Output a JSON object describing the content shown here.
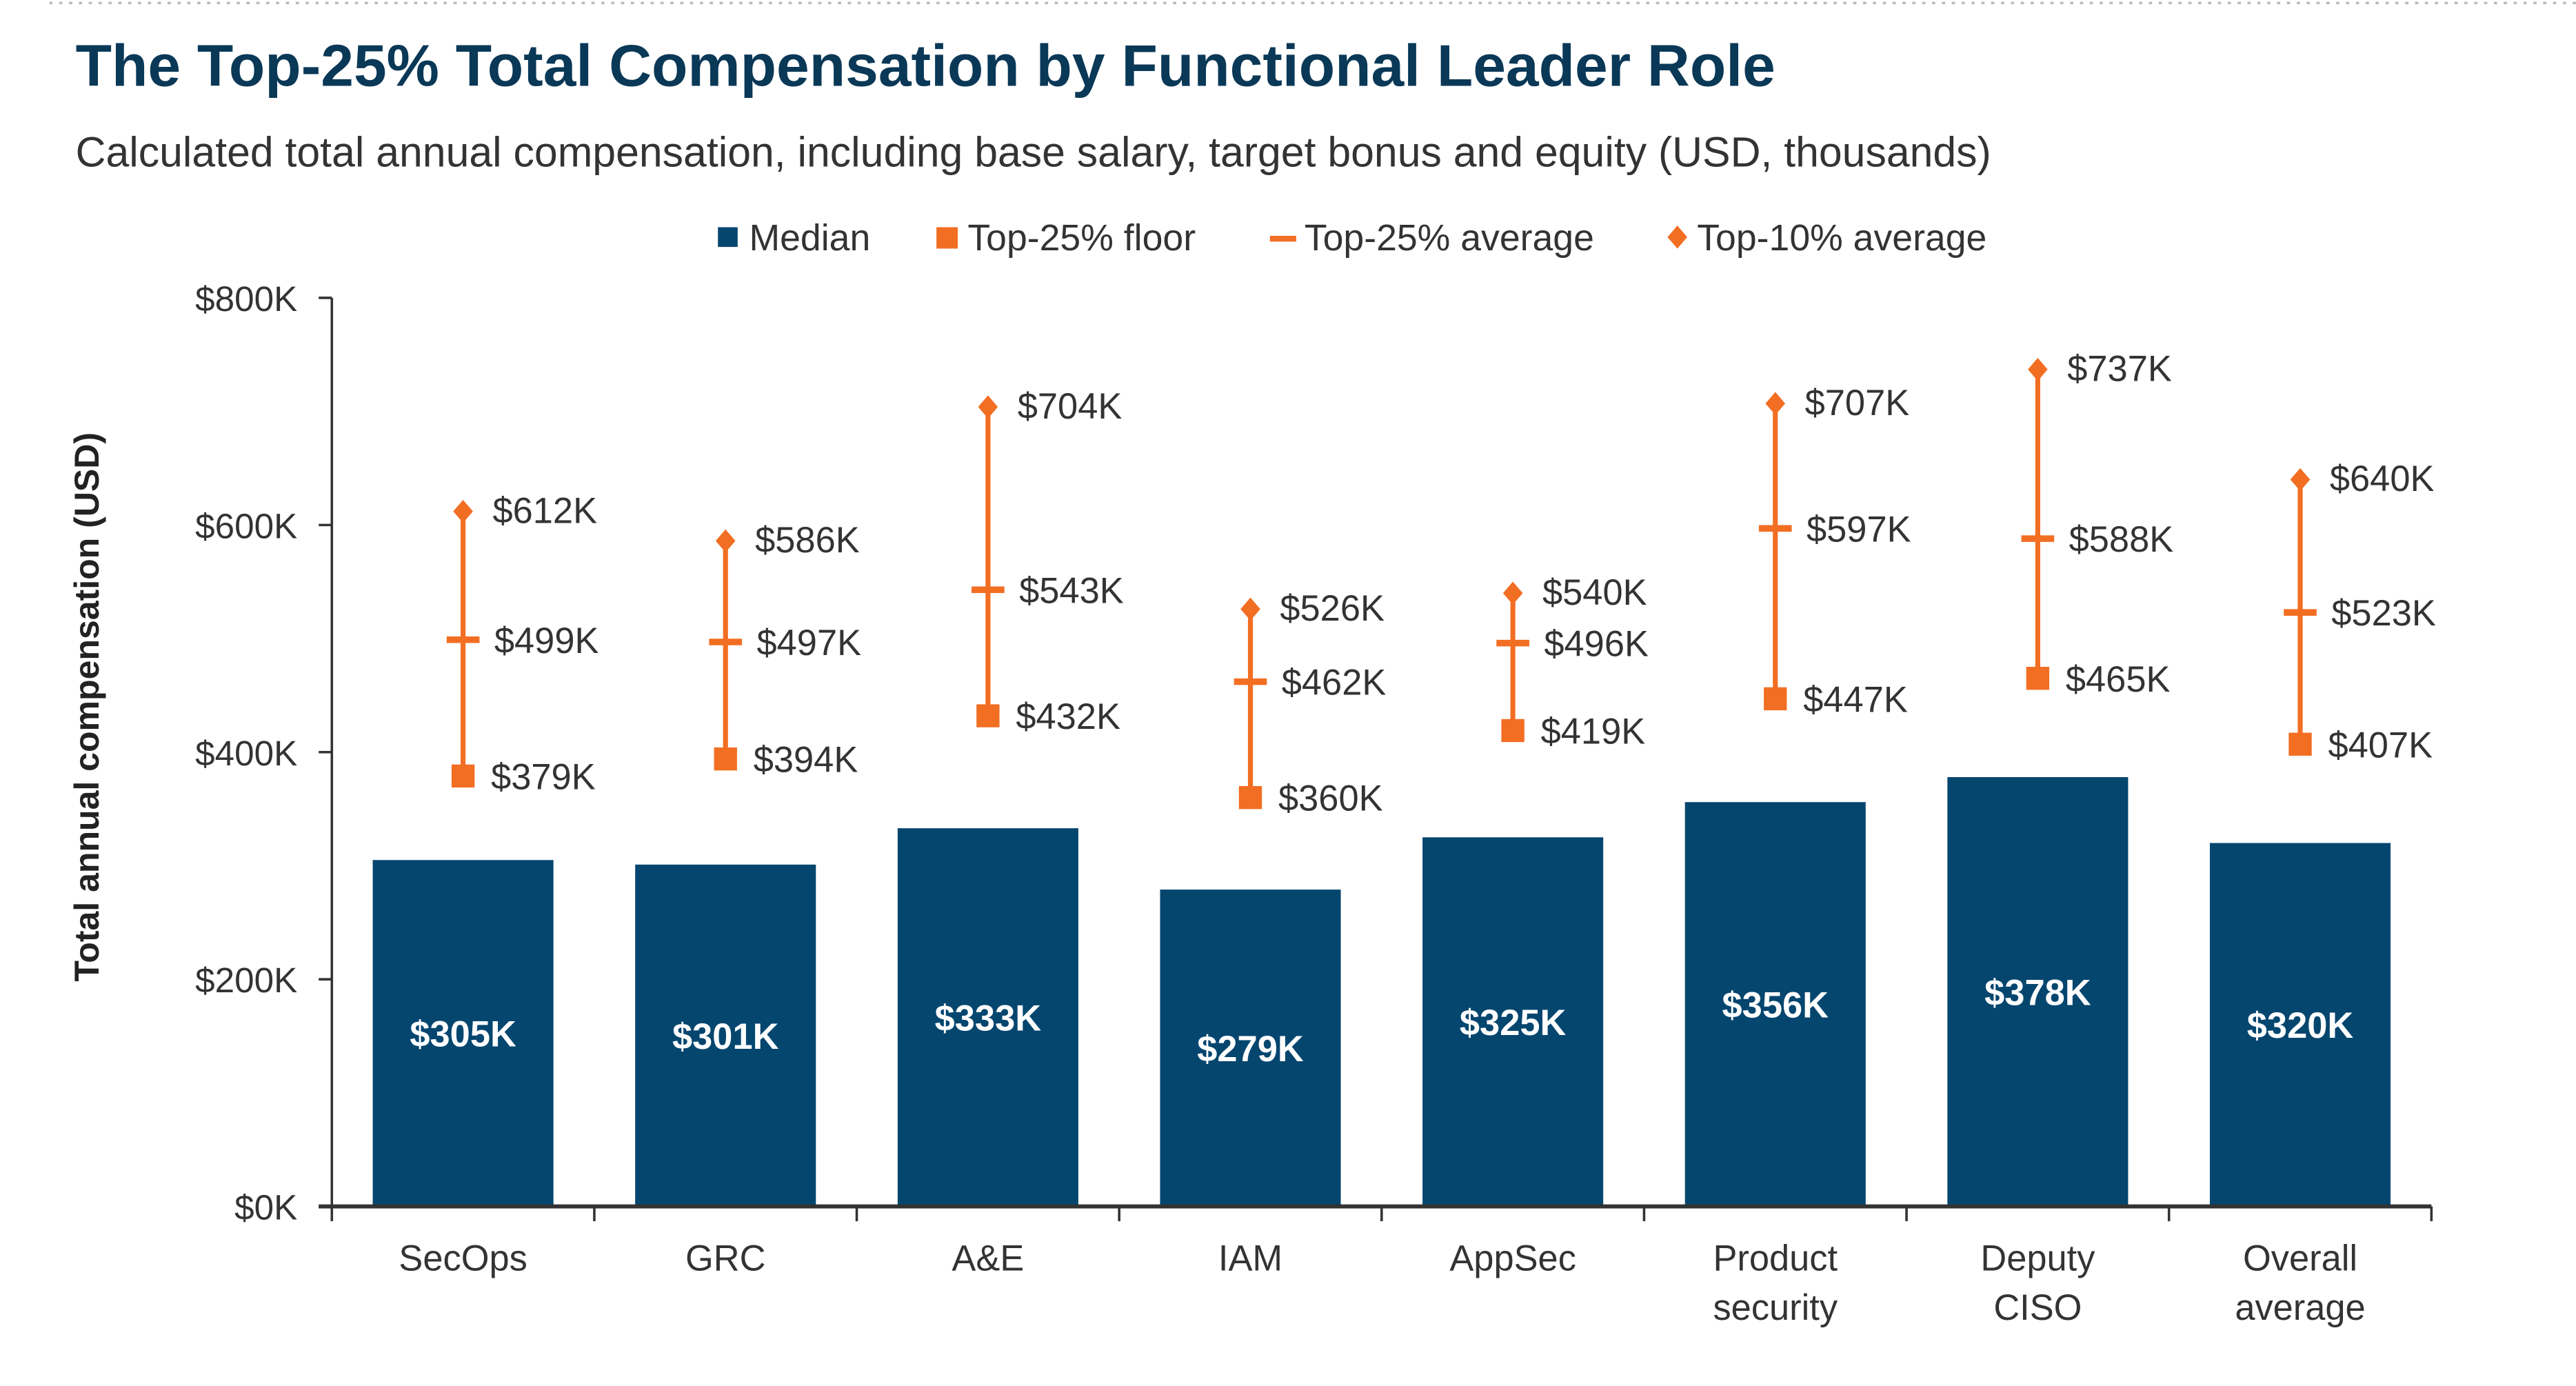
{
  "chart_data": {
    "type": "bar",
    "title": "The Top-25% Total Compensation by Functional Leader Role",
    "subtitle": "Calculated total annual compensation, including base salary, target bonus and equity (USD, thousands)",
    "ylabel": "Total annual compensation (USD)",
    "xlabel": "",
    "ylim": [
      0,
      800
    ],
    "yticks": [
      0,
      200,
      400,
      600,
      800
    ],
    "ytick_labels": [
      "$0K",
      "$200K",
      "$400K",
      "$600K",
      "$800K"
    ],
    "grid": false,
    "legend_position": "top",
    "categories": [
      [
        "SecOps"
      ],
      [
        "GRC"
      ],
      [
        "A&E"
      ],
      [
        "IAM"
      ],
      [
        "AppSec"
      ],
      [
        "Product",
        "security"
      ],
      [
        "Deputy",
        "CISO"
      ],
      [
        "Overall",
        "average"
      ]
    ],
    "series": [
      {
        "name": "Median",
        "kind": "bar",
        "color": "#05466f",
        "values": [
          305,
          301,
          333,
          279,
          325,
          356,
          378,
          320
        ]
      },
      {
        "name": "Top-25% floor",
        "kind": "square",
        "color": "#f26e22",
        "values": [
          379,
          394,
          432,
          360,
          419,
          447,
          465,
          407
        ]
      },
      {
        "name": "Top-25% average",
        "kind": "dash",
        "color": "#f26e22",
        "values": [
          499,
          497,
          543,
          462,
          496,
          597,
          588,
          523
        ]
      },
      {
        "name": "Top-10% average",
        "kind": "diamond",
        "color": "#f26e22",
        "values": [
          612,
          586,
          704,
          526,
          540,
          707,
          737,
          640
        ]
      }
    ],
    "label_format": "${v}K"
  }
}
